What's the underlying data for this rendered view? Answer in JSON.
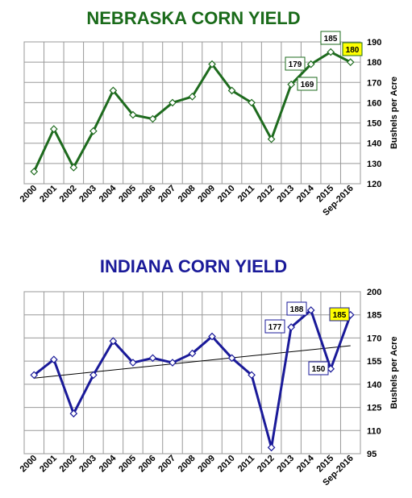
{
  "chart_data": [
    {
      "type": "line",
      "title": "NEBRASKA CORN YIELD",
      "ylabel": "Bushels per Acre",
      "categories": [
        "2000",
        "2001",
        "2002",
        "2003",
        "2004",
        "2005",
        "2006",
        "2007",
        "2008",
        "2009",
        "2010",
        "2011",
        "2012",
        "2013",
        "2014",
        "2015",
        "Sep-2016"
      ],
      "values": [
        126,
        147,
        128,
        146,
        166,
        154,
        152,
        160,
        163,
        179,
        166,
        160,
        142,
        169,
        179,
        185,
        180
      ],
      "ylim": [
        120,
        190
      ],
      "yticks": [
        120,
        130,
        140,
        150,
        160,
        170,
        180,
        190
      ],
      "grid": true,
      "colors": {
        "line": "#1e6b1e",
        "title": "#1a6b1a",
        "highlight": "#ffff00"
      },
      "annotations": [
        {
          "label": "179",
          "index": 14,
          "highlight": false
        },
        {
          "label": "169",
          "index": 13,
          "highlight": false
        },
        {
          "label": "185",
          "index": 15,
          "highlight": false
        },
        {
          "label": "180",
          "index": 16,
          "highlight": true
        }
      ]
    },
    {
      "type": "line",
      "title": "INDIANA CORN YIELD",
      "ylabel": "Bushels per Acre",
      "categories": [
        "2000",
        "2001",
        "2002",
        "2003",
        "2004",
        "2005",
        "2006",
        "2007",
        "2008",
        "2009",
        "2010",
        "2011",
        "2012",
        "2013",
        "2014",
        "2015",
        "Sep-2016"
      ],
      "values": [
        146,
        156,
        121,
        146,
        168,
        154,
        157,
        154,
        160,
        171,
        157,
        146,
        99,
        177,
        188,
        150,
        185
      ],
      "ylim": [
        95,
        200
      ],
      "yticks": [
        95,
        110,
        125,
        140,
        155,
        170,
        185,
        200
      ],
      "grid": true,
      "trendline": [
        144,
        165
      ],
      "colors": {
        "line": "#1a1a99",
        "title": "#1a1a99",
        "highlight": "#ffff00"
      },
      "annotations": [
        {
          "label": "177",
          "index": 13,
          "highlight": false
        },
        {
          "label": "188",
          "index": 14,
          "highlight": false
        },
        {
          "label": "150",
          "index": 15,
          "highlight": false
        },
        {
          "label": "185",
          "index": 16,
          "highlight": true
        }
      ]
    }
  ]
}
